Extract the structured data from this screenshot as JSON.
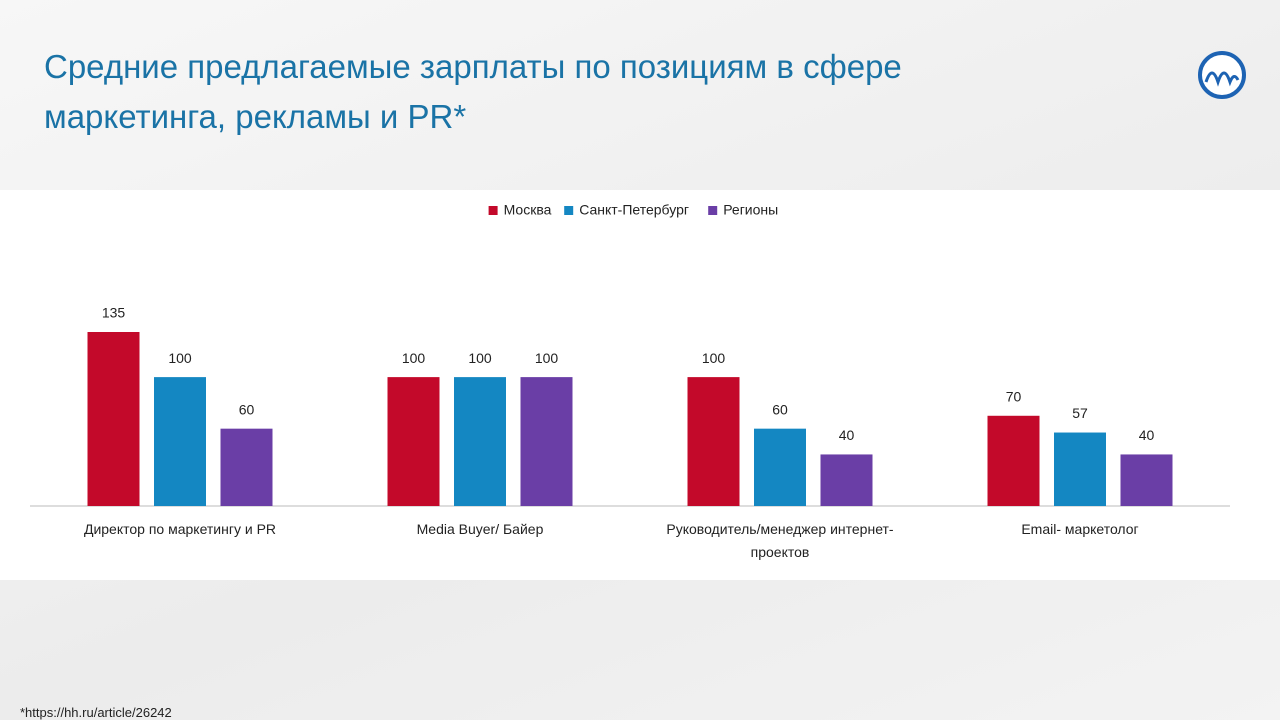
{
  "chart_data": {
    "type": "bar",
    "title": "Средние предлагаемые зарплаты по позициям в сфере маркетинга, рекламы и PR*",
    "categories": [
      "Директор по маркетингу и PR",
      "Media Buyer/ Байер",
      "Руководитель/менеджер интернет-проектов",
      "Email- маркетолог"
    ],
    "series": [
      {
        "name": "Москва",
        "color": "#c3092a",
        "values": [
          135,
          100,
          100,
          70
        ]
      },
      {
        "name": "Санкт-Петербург",
        "color": "#1487c2",
        "values": [
          100,
          100,
          60,
          57
        ]
      },
      {
        "name": "Регионы",
        "color": "#6a3ea6",
        "values": [
          60,
          100,
          40,
          40
        ]
      }
    ],
    "legend": "top"
  },
  "footnote": "*https://hh.ru/article/26242"
}
